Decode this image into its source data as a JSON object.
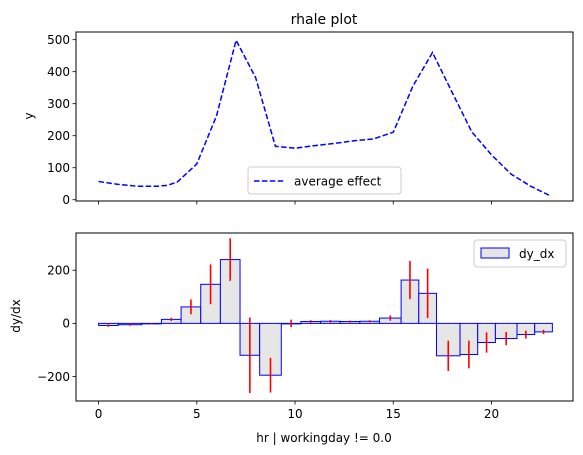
{
  "chart_data": [
    {
      "type": "line",
      "title": "rhale plot",
      "xlabel": "",
      "ylabel": "y",
      "xlim": [
        -1.15,
        24.15
      ],
      "ylim": [
        -4,
        524
      ],
      "xticks": [
        0,
        5,
        10,
        15,
        20
      ],
      "yticks": [
        0,
        100,
        200,
        300,
        400,
        500
      ],
      "ytick_labels": [
        "0",
        "100",
        "200",
        "300",
        "400",
        "500"
      ],
      "legend_position": "lower-center",
      "series": [
        {
          "name": "average effect",
          "color": "#0000ff",
          "style": "dashed",
          "x": [
            0,
            1,
            2,
            3,
            3.5,
            4,
            5,
            6,
            7,
            8,
            9,
            10,
            11,
            12,
            13,
            14,
            15,
            16,
            17,
            18,
            19,
            20,
            21,
            22,
            23
          ],
          "y": [
            57,
            48,
            42,
            42,
            45,
            55,
            112,
            262,
            498,
            381,
            167,
            161,
            169,
            176,
            184,
            190,
            211,
            355,
            460,
            335,
            212,
            140,
            80,
            42,
            12
          ]
        }
      ]
    },
    {
      "type": "bar",
      "title": "",
      "xlabel": "hr | workingday != 0.0",
      "ylabel": "dy/dx",
      "xlim": [
        -1.15,
        24.15
      ],
      "ylim": [
        -292,
        340
      ],
      "xticks": [
        0,
        5,
        10,
        15,
        20
      ],
      "xtick_labels": [
        "0",
        "5",
        "10",
        "15",
        "20"
      ],
      "yticks": [
        -200,
        0,
        200
      ],
      "ytick_labels": [
        "−200",
        "0",
        "200"
      ],
      "legend_position": "top-right",
      "bar_fill": "#e6e6e6",
      "bar_edge": "#0000ff",
      "error_color": "#ff0000",
      "series": [
        {
          "name": "dy_dx",
          "bars": [
            {
              "x0": 0,
              "x1": 1,
              "y": -8,
              "err": 5
            },
            {
              "x0": 1,
              "x1": 2.2,
              "y": -5,
              "err": 4
            },
            {
              "x0": 2.2,
              "x1": 3.2,
              "y": -1,
              "err": 2
            },
            {
              "x0": 3.2,
              "x1": 4.2,
              "y": 15,
              "err": 6
            },
            {
              "x0": 4.2,
              "x1": 5.2,
              "y": 62,
              "err": 28
            },
            {
              "x0": 5.2,
              "x1": 6.2,
              "y": 147,
              "err": 75
            },
            {
              "x0": 6.2,
              "x1": 7.2,
              "y": 240,
              "err": 80
            },
            {
              "x0": 7.2,
              "x1": 8.2,
              "y": -120,
              "err": 142
            },
            {
              "x0": 8.2,
              "x1": 9.3,
              "y": -195,
              "err": 65
            },
            {
              "x0": 9.3,
              "x1": 10.3,
              "y": 0,
              "err": 14
            },
            {
              "x0": 10.3,
              "x1": 11.3,
              "y": 7,
              "err": 5
            },
            {
              "x0": 11.3,
              "x1": 12.3,
              "y": 8,
              "err": 5
            },
            {
              "x0": 12.3,
              "x1": 13.3,
              "y": 7,
              "err": 4
            },
            {
              "x0": 13.3,
              "x1": 14.3,
              "y": 8,
              "err": 4
            },
            {
              "x0": 14.3,
              "x1": 15.4,
              "y": 20,
              "err": 10
            },
            {
              "x0": 15.4,
              "x1": 16.3,
              "y": 163,
              "err": 72
            },
            {
              "x0": 16.3,
              "x1": 17.2,
              "y": 113,
              "err": 93
            },
            {
              "x0": 17.2,
              "x1": 18.4,
              "y": -122,
              "err": 57
            },
            {
              "x0": 18.4,
              "x1": 19.3,
              "y": -117,
              "err": 52
            },
            {
              "x0": 19.3,
              "x1": 20.2,
              "y": -72,
              "err": 38
            },
            {
              "x0": 20.2,
              "x1": 21.3,
              "y": -57,
              "err": 25
            },
            {
              "x0": 21.3,
              "x1": 22.2,
              "y": -42,
              "err": 15
            },
            {
              "x0": 22.2,
              "x1": 23.1,
              "y": -32,
              "err": 8
            }
          ]
        }
      ]
    }
  ]
}
